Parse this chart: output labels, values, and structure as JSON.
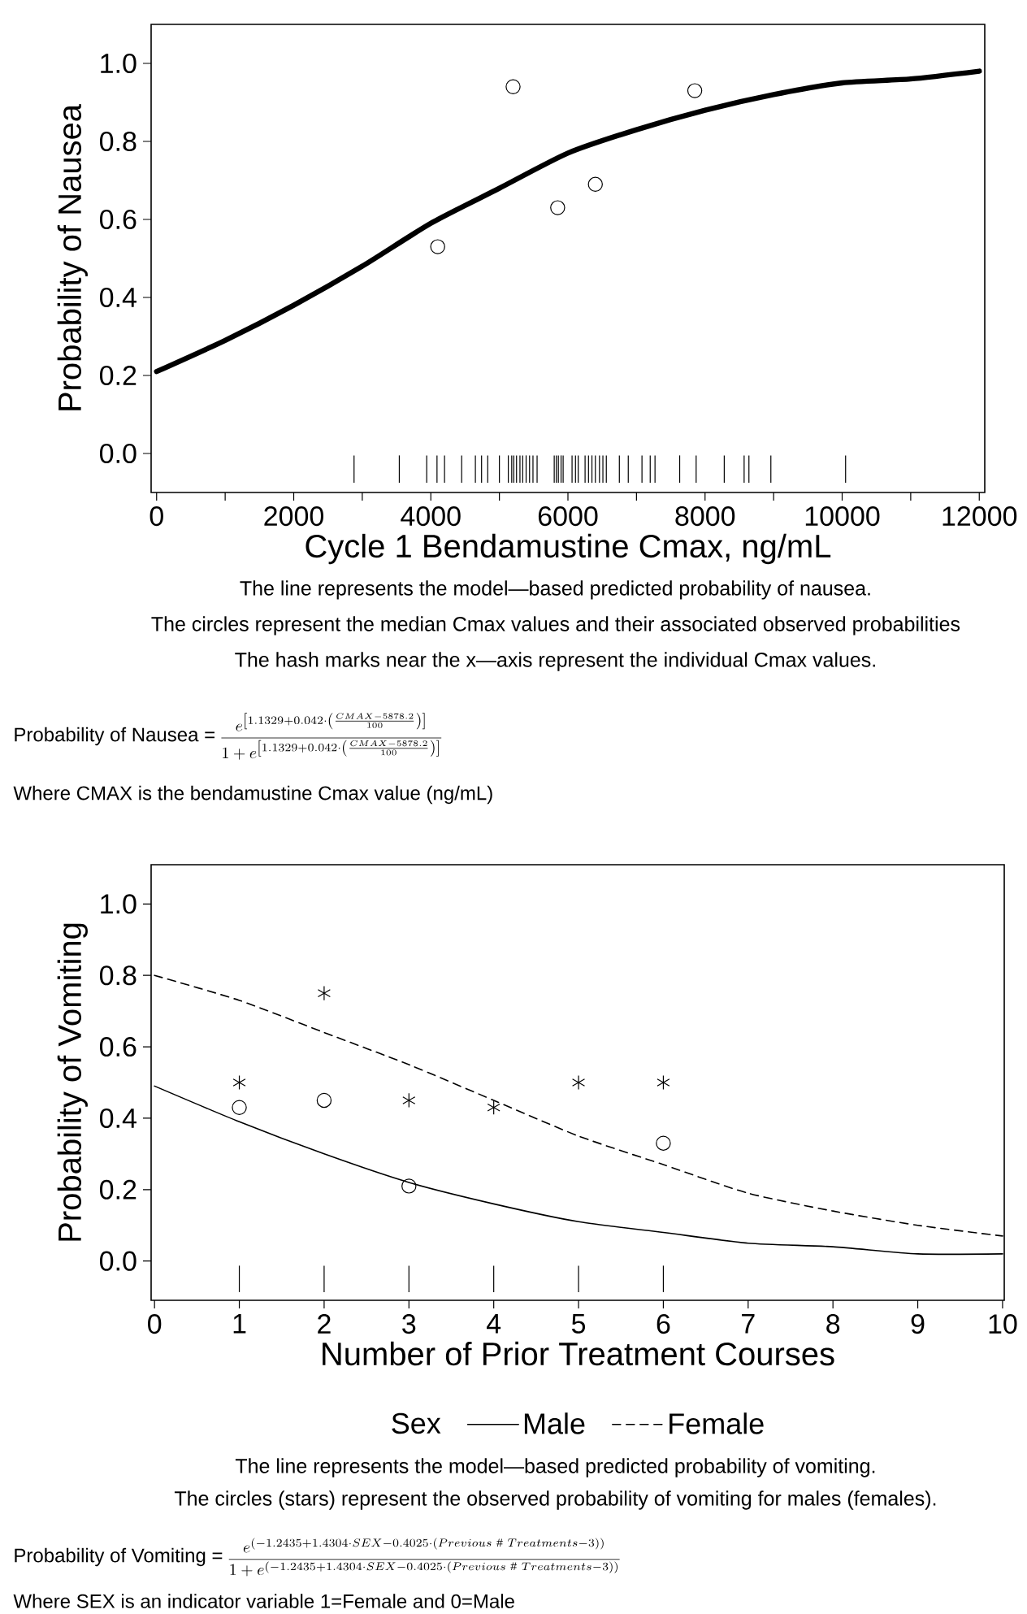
{
  "chart_data": [
    {
      "type": "line",
      "xlabel": "Cycle 1 Bendamustine Cmax, ng/mL",
      "ylabel": "Probability of Nausea",
      "xlim": [
        -80,
        12080
      ],
      "ylim": [
        -0.1,
        1.1
      ],
      "xticks": [
        0,
        {
          "value": 1000,
          "label": null
        },
        2000,
        {
          "value": 3000,
          "label": null
        },
        4000,
        {
          "value": 5000,
          "label": null
        },
        6000,
        {
          "value": 7000,
          "label": null
        },
        8000,
        {
          "value": 9000,
          "label": null
        },
        10000,
        {
          "value": 11000,
          "label": null
        },
        12000
      ],
      "yticks": [
        {
          "value": 0.0,
          "label": "0.0"
        },
        {
          "value": 0.2,
          "label": "0.2"
        },
        {
          "value": 0.4,
          "label": "0.4"
        },
        {
          "value": 0.6,
          "label": "0.6"
        },
        {
          "value": 0.8,
          "label": "0.8"
        },
        {
          "value": 1.0,
          "label": "1.0"
        }
      ],
      "series": [
        {
          "color": "#000000",
          "line_style": "solid",
          "marker": "none",
          "x": [
            0,
            1000,
            2000,
            3000,
            4000,
            5000,
            6000,
            7000,
            8000,
            9000,
            10000,
            11000,
            12000
          ],
          "values": [
            0.21,
            0.29,
            0.38,
            0.48,
            0.59,
            0.68,
            0.77,
            0.83,
            0.88,
            0.92,
            0.95,
            0.96,
            0.98
          ]
        },
        {
          "type": "scatter",
          "color": "#000000",
          "marker": "circle",
          "x": [
            4100,
            5200,
            5850,
            6400,
            7850
          ],
          "values": [
            0.53,
            0.94,
            0.63,
            0.69,
            0.93
          ]
        },
        {
          "type": "bar",
          "color": "#000000",
          "base": [
            -0.075,
            -0.075,
            -0.075,
            -0.075,
            -0.075,
            -0.075,
            -0.075,
            -0.075,
            -0.075,
            -0.075,
            -0.075,
            -0.075,
            -0.075,
            -0.075,
            -0.075,
            -0.075,
            -0.075,
            -0.075,
            -0.075,
            -0.075,
            -0.075,
            -0.075,
            -0.075,
            -0.075,
            -0.075,
            -0.075,
            -0.075,
            -0.075,
            -0.075,
            -0.075,
            -0.075,
            -0.075,
            -0.075,
            -0.075,
            -0.075,
            -0.075,
            -0.075,
            -0.075,
            -0.075,
            -0.075,
            -0.075,
            -0.075,
            -0.075,
            -0.075,
            -0.075,
            -0.075,
            -0.075
          ],
          "x": [
            2880,
            3540,
            3940,
            4090,
            4200,
            4450,
            4650,
            4740,
            4830,
            5000,
            5130,
            5180,
            5210,
            5250,
            5300,
            5340,
            5390,
            5440,
            5490,
            5550,
            5800,
            5830,
            5860,
            5900,
            5930,
            6060,
            6110,
            6150,
            6250,
            6300,
            6350,
            6400,
            6460,
            6510,
            6560,
            6750,
            6880,
            7080,
            7200,
            7270,
            7630,
            7870,
            8280,
            8570,
            8640,
            8960,
            10050
          ],
          "values": [
            0.07,
            0.07,
            0.07,
            0.07,
            0.07,
            0.07,
            0.07,
            0.07,
            0.07,
            0.07,
            0.07,
            0.07,
            0.07,
            0.07,
            0.07,
            0.07,
            0.07,
            0.07,
            0.07,
            0.07,
            0.07,
            0.07,
            0.07,
            0.07,
            0.07,
            0.07,
            0.07,
            0.07,
            0.07,
            0.07,
            0.07,
            0.07,
            0.07,
            0.07,
            0.07,
            0.07,
            0.07,
            0.07,
            0.07,
            0.07,
            0.07,
            0.07,
            0.07,
            0.07,
            0.07,
            0.07,
            0.07
          ]
        }
      ],
      "annotations": [
        "The line represents the model—based predicted probability of nausea.",
        "The circles represent the median Cmax values and their associated observed probabilities",
        "The hash marks near the x—axis represent the individual Cmax values.",
        "Probability of Nausea =",
        "\\frac{e^{\\left[1.1329+0.042\\cdot\\left(\\frac{CMAX-5878.2}{100}\\right)\\right]}}{1+e^{\\left[1.1329+0.042\\cdot\\left(\\frac{CMAX-5878.2}{100}\\right)\\right]}}",
        "Where CMAX is the bendamustine Cmax value (ng/mL)"
      ]
    },
    {
      "type": "line",
      "xlabel": "Number of Prior Treatment Courses",
      "ylabel": "Probability of Vomiting",
      "legend": "bottom",
      "legend_title": "Sex",
      "xlim": [
        -0.04,
        10.02
      ],
      "ylim": [
        -0.11,
        1.11
      ],
      "xticks": [
        0,
        1,
        2,
        3,
        4,
        5,
        6,
        7,
        8,
        9,
        10
      ],
      "yticks": [
        {
          "value": 0.0,
          "label": "0.0"
        },
        {
          "value": 0.2,
          "label": "0.2"
        },
        {
          "value": 0.4,
          "label": "0.4"
        },
        {
          "value": 0.6,
          "label": "0.6"
        },
        {
          "value": 0.8,
          "label": "0.8"
        },
        {
          "value": 1.0,
          "label": "1.0"
        }
      ],
      "series": [
        {
          "name": "Male",
          "color": "#000000",
          "line_style": "solid",
          "marker": "none",
          "x": [
            0,
            1,
            2,
            3,
            4,
            5,
            6,
            7,
            8,
            9,
            10
          ],
          "values": [
            0.49,
            0.39,
            0.3,
            0.22,
            0.16,
            0.11,
            0.08,
            0.05,
            0.04,
            0.02,
            0.02
          ]
        },
        {
          "name": "Female",
          "color": "#000000",
          "line_style": "dashed",
          "marker": "none",
          "x": [
            0,
            1,
            2,
            3,
            4,
            5,
            6,
            7,
            8,
            9,
            10
          ],
          "values": [
            0.8,
            0.73,
            0.64,
            0.55,
            0.45,
            0.35,
            0.27,
            0.19,
            0.14,
            0.1,
            0.07
          ]
        },
        {
          "type": "scatter",
          "color": "#000000",
          "marker": "circle",
          "x": [
            1,
            2,
            3,
            6
          ],
          "values": [
            0.43,
            0.45,
            0.21,
            0.33
          ]
        },
        {
          "type": "scatter",
          "color": "#000000",
          "marker": "cross",
          "x": [
            1,
            2,
            3,
            4,
            5,
            6
          ],
          "values": [
            0.5,
            0.75,
            0.45,
            0.43,
            0.5,
            0.5
          ]
        },
        {
          "type": "bar",
          "color": "#000000",
          "x": [
            1,
            2,
            3,
            4,
            5,
            6
          ],
          "base": [
            -0.087,
            -0.087,
            -0.087,
            -0.087,
            -0.087,
            -0.087
          ],
          "values": [
            0.074,
            0.074,
            0.074,
            0.074,
            0.074,
            0.074
          ]
        }
      ],
      "annotations": [
        "The line represents the model—based predicted probability of vomiting.",
        "The circles (stars) represent the observed probability of vomiting for males (females).",
        "Probability of Vomiting =",
        "\\frac{e^{(-1.2435+1.4304\\cdot SEX-0.4025\\cdot(Previous\\ \\#\\ Treatments-3))}}{1+e^{(-1.2435+1.4304\\cdot SEX-0.4025\\cdot(Previous\\ \\#\\ Treatments-3))}}",
        "Where SEX is an indicator variable 1=Female and 0=Male"
      ]
    }
  ]
}
